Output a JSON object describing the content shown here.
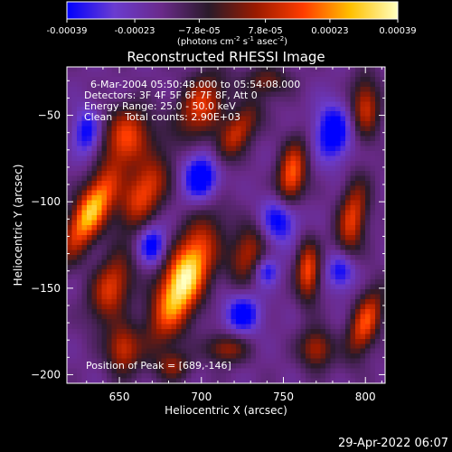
{
  "chart_data": {
    "type": "heatmap",
    "title": "Reconstructed RHESSI Image",
    "xlabel": "Heliocentric X (arcsec)",
    "ylabel": "Heliocentric Y (arcsec)",
    "xlim": [
      618,
      812
    ],
    "ylim": [
      -205,
      -22
    ],
    "x_ticks": [
      650,
      700,
      750,
      800
    ],
    "y_ticks": [
      -50,
      -100,
      -150,
      -200
    ],
    "x_tick_labels": [
      "650",
      "700",
      "750",
      "800"
    ],
    "y_tick_labels": [
      "−50",
      "−100",
      "−150",
      "−200"
    ],
    "colorbar": {
      "range": [
        -0.00039,
        0.00039
      ],
      "ticks": [
        -0.00039,
        -0.00023,
        -7.8e-05,
        7.8e-05,
        0.00023,
        0.00039
      ],
      "tick_labels": [
        "-0.00039",
        "-0.00023",
        "−7.8e-05",
        "7.8e-05",
        "0.00023",
        "0.00039"
      ],
      "unit_text": "(photons cm",
      "unit_exp1": "-2",
      "unit_mid": " s",
      "unit_exp2": "-1",
      "unit_mid2": " asec",
      "unit_exp3": "-2",
      "unit_end": ")",
      "colors": [
        "#0000ff",
        "#6a3cd0",
        "#6a2a8a",
        "#2a1a2a",
        "#9a1a00",
        "#ff3c00",
        "#ffc000",
        "#ffffc0"
      ]
    },
    "annotations": [
      "6-Mar-2004 05:50:48.000 to 05:54:08.000",
      "Detectors: 3F 4F 5F 6F 7F 8F, Att 0",
      "Energy Range: 25.0 - 50.0 keV",
      "Clean    Total counts: 2.90E+03"
    ],
    "peak_label": "Position of Peak = [689,-146]",
    "sources": [
      {
        "x": 689,
        "y": -146,
        "sx": 9,
        "sy": 24,
        "rot": -25,
        "amp": 1.0
      },
      {
        "x": 633,
        "y": -105,
        "sx": 7,
        "sy": 20,
        "rot": -30,
        "amp": 0.85
      },
      {
        "x": 655,
        "y": -62,
        "sx": 10,
        "sy": 12,
        "rot": -20,
        "amp": 0.55
      },
      {
        "x": 665,
        "y": -95,
        "sx": 8,
        "sy": 16,
        "rot": -30,
        "amp": 0.6
      },
      {
        "x": 645,
        "y": -150,
        "sx": 8,
        "sy": 14,
        "rot": -20,
        "amp": 0.55
      },
      {
        "x": 652,
        "y": -185,
        "sx": 7,
        "sy": 10,
        "rot": 0,
        "amp": 0.5
      },
      {
        "x": 700,
        "y": -45,
        "sx": 9,
        "sy": 14,
        "rot": -25,
        "amp": 0.55
      },
      {
        "x": 722,
        "y": -60,
        "sx": 6,
        "sy": 14,
        "rot": -35,
        "amp": 0.5
      },
      {
        "x": 755,
        "y": -85,
        "sx": 6,
        "sy": 14,
        "rot": -10,
        "amp": 0.65
      },
      {
        "x": 728,
        "y": -130,
        "sx": 7,
        "sy": 12,
        "rot": -20,
        "amp": 0.45
      },
      {
        "x": 765,
        "y": -140,
        "sx": 5,
        "sy": 12,
        "rot": 0,
        "amp": 0.6
      },
      {
        "x": 792,
        "y": -110,
        "sx": 6,
        "sy": 16,
        "rot": -10,
        "amp": 0.55
      },
      {
        "x": 800,
        "y": -170,
        "sx": 6,
        "sy": 14,
        "rot": -20,
        "amp": 0.6
      },
      {
        "x": 770,
        "y": -185,
        "sx": 7,
        "sy": 8,
        "rot": 0,
        "amp": 0.45
      },
      {
        "x": 715,
        "y": -185,
        "sx": 9,
        "sy": 6,
        "rot": 0,
        "amp": 0.4
      },
      {
        "x": 800,
        "y": -45,
        "sx": 6,
        "sy": 12,
        "rot": 0,
        "amp": 0.5
      },
      {
        "x": 683,
        "y": -195,
        "sx": 7,
        "sy": 6,
        "rot": 0,
        "amp": 0.35
      },
      {
        "x": 740,
        "y": -30,
        "sx": 10,
        "sy": 6,
        "rot": 0,
        "amp": 0.3
      }
    ],
    "negatives": [
      {
        "x": 700,
        "y": -85,
        "sx": 8,
        "sy": 10,
        "amp": 0.55
      },
      {
        "x": 748,
        "y": -110,
        "sx": 8,
        "sy": 10,
        "amp": 0.5
      },
      {
        "x": 780,
        "y": -60,
        "sx": 8,
        "sy": 12,
        "amp": 0.5
      },
      {
        "x": 725,
        "y": -165,
        "sx": 8,
        "sy": 8,
        "amp": 0.45
      },
      {
        "x": 630,
        "y": -60,
        "sx": 6,
        "sy": 10,
        "amp": 0.4
      },
      {
        "x": 670,
        "y": -125,
        "sx": 6,
        "sy": 8,
        "amp": 0.45
      },
      {
        "x": 785,
        "y": -140,
        "sx": 6,
        "sy": 8,
        "amp": 0.45
      },
      {
        "x": 740,
        "y": -140,
        "sx": 5,
        "sy": 6,
        "amp": 0.35
      }
    ]
  },
  "footer": {
    "date": "29-Apr-2022 06:07"
  }
}
